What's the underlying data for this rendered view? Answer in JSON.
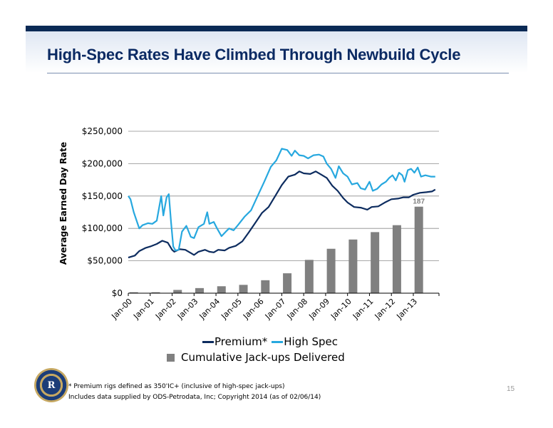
{
  "header": {
    "title": "High-Spec Rates Have Climbed Through Newbuild Cycle"
  },
  "colors": {
    "premium": "#0d2c5f",
    "high_spec": "#27a8df",
    "bars": "#808080",
    "header_bar": "#0b2a55"
  },
  "chart_data": {
    "type": "line",
    "ylabel": "Average Earned Day Rate",
    "ylim": [
      0,
      250000
    ],
    "y_ticks": [
      0,
      50000,
      100000,
      150000,
      200000,
      250000
    ],
    "y_tick_labels": [
      "$0",
      "$50,000",
      "$100,000",
      "$150,000",
      "$200,000",
      "$250,000"
    ],
    "x_range": [
      2000.0,
      2014.17
    ],
    "x_ticks": [
      2000,
      2001,
      2002,
      2003,
      2004,
      2005,
      2006,
      2007,
      2008,
      2009,
      2010,
      2011,
      2012,
      2013
    ],
    "x_tick_labels": [
      "Jan-00",
      "Jan-01",
      "Jan-02",
      "Jan-03",
      "Jan-04",
      "Jan-05",
      "Jan-06",
      "Jan-07",
      "Jan-08",
      "Jan-09",
      "Jan-10",
      "Jan-11",
      "Jan-12",
      "Jan-13"
    ],
    "grid": "horizontal",
    "legend_position": "bottom",
    "series": [
      {
        "name": "Premium*",
        "color": "#0d2c5f",
        "points": [
          [
            2000.0,
            55000
          ],
          [
            2000.3,
            58000
          ],
          [
            2000.5,
            65000
          ],
          [
            2000.8,
            70000
          ],
          [
            2001.0,
            72000
          ],
          [
            2001.3,
            76000
          ],
          [
            2001.55,
            81000
          ],
          [
            2001.8,
            78000
          ],
          [
            2002.0,
            67000
          ],
          [
            2002.1,
            64000
          ],
          [
            2002.35,
            68000
          ],
          [
            2002.6,
            67000
          ],
          [
            2002.85,
            62000
          ],
          [
            2003.0,
            59000
          ],
          [
            2003.2,
            64000
          ],
          [
            2003.5,
            67000
          ],
          [
            2003.7,
            64000
          ],
          [
            2003.9,
            63000
          ],
          [
            2004.1,
            67000
          ],
          [
            2004.4,
            66000
          ],
          [
            2004.6,
            70000
          ],
          [
            2004.9,
            73000
          ],
          [
            2005.2,
            80000
          ],
          [
            2005.5,
            94000
          ],
          [
            2005.8,
            109000
          ],
          [
            2006.1,
            124000
          ],
          [
            2006.4,
            133000
          ],
          [
            2006.7,
            150000
          ],
          [
            2007.0,
            167000
          ],
          [
            2007.3,
            180000
          ],
          [
            2007.6,
            183000
          ],
          [
            2007.8,
            188000
          ],
          [
            2008.0,
            185000
          ],
          [
            2008.3,
            184000
          ],
          [
            2008.55,
            188000
          ],
          [
            2008.8,
            183000
          ],
          [
            2009.05,
            178000
          ],
          [
            2009.3,
            166000
          ],
          [
            2009.55,
            158000
          ],
          [
            2009.8,
            147000
          ],
          [
            2010.0,
            140000
          ],
          [
            2010.3,
            133000
          ],
          [
            2010.6,
            132000
          ],
          [
            2010.9,
            129000
          ],
          [
            2011.1,
            133000
          ],
          [
            2011.4,
            134000
          ],
          [
            2011.7,
            140000
          ],
          [
            2012.0,
            145000
          ],
          [
            2012.3,
            146000
          ],
          [
            2012.55,
            148000
          ],
          [
            2012.8,
            148000
          ],
          [
            2013.0,
            152000
          ],
          [
            2013.3,
            155000
          ],
          [
            2013.6,
            156000
          ],
          [
            2013.85,
            157000
          ],
          [
            2014.0,
            160000
          ]
        ]
      },
      {
        "name": "High Spec",
        "color": "#27a8df",
        "points": [
          [
            2000.0,
            150000
          ],
          [
            2000.1,
            145000
          ],
          [
            2000.25,
            125000
          ],
          [
            2000.4,
            110000
          ],
          [
            2000.5,
            100000
          ],
          [
            2000.65,
            105000
          ],
          [
            2000.9,
            108000
          ],
          [
            2001.1,
            107000
          ],
          [
            2001.3,
            112000
          ],
          [
            2001.5,
            150000
          ],
          [
            2001.6,
            120000
          ],
          [
            2001.75,
            148000
          ],
          [
            2001.85,
            153000
          ],
          [
            2001.95,
            110000
          ],
          [
            2002.05,
            72000
          ],
          [
            2002.15,
            66000
          ],
          [
            2002.3,
            67000
          ],
          [
            2002.45,
            95000
          ],
          [
            2002.65,
            104000
          ],
          [
            2002.85,
            87000
          ],
          [
            2003.0,
            85000
          ],
          [
            2003.2,
            102000
          ],
          [
            2003.45,
            107000
          ],
          [
            2003.6,
            125000
          ],
          [
            2003.7,
            107000
          ],
          [
            2003.9,
            110000
          ],
          [
            2004.05,
            100000
          ],
          [
            2004.25,
            88000
          ],
          [
            2004.45,
            95000
          ],
          [
            2004.6,
            100000
          ],
          [
            2004.8,
            97000
          ],
          [
            2005.0,
            105000
          ],
          [
            2005.3,
            118000
          ],
          [
            2005.6,
            128000
          ],
          [
            2005.9,
            150000
          ],
          [
            2006.2,
            172000
          ],
          [
            2006.5,
            195000
          ],
          [
            2006.75,
            205000
          ],
          [
            2007.0,
            223000
          ],
          [
            2007.25,
            221000
          ],
          [
            2007.45,
            212000
          ],
          [
            2007.6,
            220000
          ],
          [
            2007.8,
            213000
          ],
          [
            2008.0,
            212000
          ],
          [
            2008.2,
            208000
          ],
          [
            2008.45,
            213000
          ],
          [
            2008.7,
            214000
          ],
          [
            2008.9,
            211000
          ],
          [
            2009.05,
            200000
          ],
          [
            2009.25,
            192000
          ],
          [
            2009.45,
            178000
          ],
          [
            2009.6,
            196000
          ],
          [
            2009.8,
            185000
          ],
          [
            2010.0,
            180000
          ],
          [
            2010.2,
            168000
          ],
          [
            2010.45,
            170000
          ],
          [
            2010.6,
            162000
          ],
          [
            2010.8,
            160000
          ],
          [
            2011.0,
            172000
          ],
          [
            2011.15,
            158000
          ],
          [
            2011.35,
            161000
          ],
          [
            2011.55,
            168000
          ],
          [
            2011.75,
            172000
          ],
          [
            2011.9,
            178000
          ],
          [
            2012.05,
            182000
          ],
          [
            2012.2,
            174000
          ],
          [
            2012.35,
            186000
          ],
          [
            2012.5,
            182000
          ],
          [
            2012.6,
            172000
          ],
          [
            2012.75,
            190000
          ],
          [
            2012.9,
            192000
          ],
          [
            2013.05,
            186000
          ],
          [
            2013.2,
            194000
          ],
          [
            2013.35,
            180000
          ],
          [
            2013.55,
            182000
          ],
          [
            2013.8,
            180000
          ],
          [
            2014.0,
            180000
          ]
        ]
      }
    ],
    "bar_series": {
      "name": "Cumulative Jack-ups Delivered",
      "color": "#808080",
      "x": [
        2000.25,
        2001.25,
        2002.25,
        2003.25,
        2004.25,
        2005.25,
        2006.25,
        2007.25,
        2008.25,
        2009.25,
        2010.25,
        2011.25,
        2012.25,
        2013.25
      ],
      "values": [
        2,
        2,
        7,
        11,
        15,
        18,
        28,
        43,
        72,
        96,
        116,
        132,
        147,
        187
      ]
    },
    "bars_axis_max": 350,
    "annotation": "187"
  },
  "footnote": {
    "line1": "* Premium rigs defined as 350'IC+ (inclusive of high-spec jack-ups)",
    "line2": "Includes data supplied by ODS-Petrodata, Inc; Copyright 2014 (as of 02/06/14)"
  },
  "page_number": "15",
  "logo": {
    "letter": "R"
  }
}
